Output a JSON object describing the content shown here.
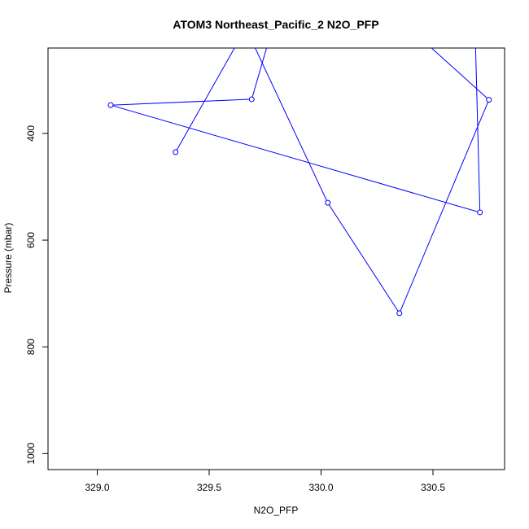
{
  "chart_data": {
    "type": "line",
    "title": "ATOM3 Northeast_Pacific_2 N2O_PFP",
    "xlabel": "N2O_PFP",
    "ylabel": "Pressure (mbar)",
    "xlim": [
      328.78,
      330.82
    ],
    "ylim": [
      1030,
      240
    ],
    "y_reversed": true,
    "x_ticks": [
      {
        "value": 329.0,
        "label": "329.0"
      },
      {
        "value": 329.5,
        "label": "329.5"
      },
      {
        "value": 330.0,
        "label": "330.0"
      },
      {
        "value": 330.5,
        "label": "330.5"
      }
    ],
    "y_ticks": [
      {
        "value": 400,
        "label": "400"
      },
      {
        "value": 600,
        "label": "600"
      },
      {
        "value": 800,
        "label": "800"
      },
      {
        "value": 1000,
        "label": "1000"
      }
    ],
    "series": [
      {
        "color": "#0000ff",
        "points": [
          {
            "x": 329.35,
            "y": 435,
            "marker": true
          },
          {
            "x": 329.62,
            "y": 235,
            "marker": false
          },
          {
            "x": 329.7,
            "y": 235,
            "marker": false
          },
          {
            "x": 330.03,
            "y": 530,
            "marker": true
          },
          {
            "x": 330.35,
            "y": 737,
            "marker": true
          },
          {
            "x": 330.75,
            "y": 337,
            "marker": true
          },
          {
            "x": 330.48,
            "y": 235,
            "marker": false
          },
          {
            "x": 330.69,
            "y": 235,
            "marker": false
          },
          {
            "x": 330.71,
            "y": 548,
            "marker": true
          },
          {
            "x": 329.06,
            "y": 347,
            "marker": true
          },
          {
            "x": 329.69,
            "y": 336,
            "marker": true
          },
          {
            "x": 329.76,
            "y": 235,
            "marker": false
          }
        ]
      }
    ],
    "grid": false,
    "legend": "none"
  }
}
